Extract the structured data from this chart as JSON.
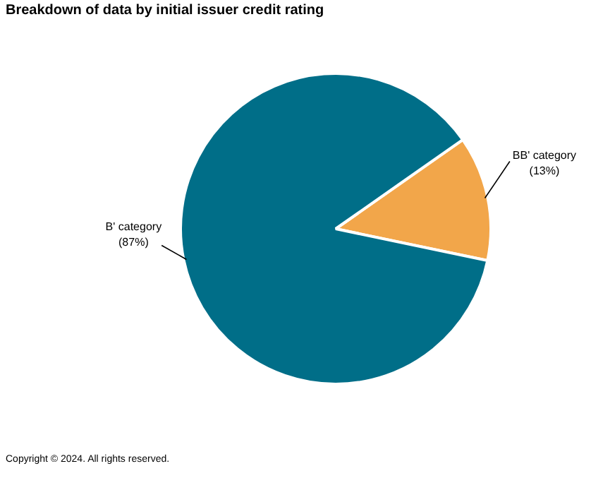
{
  "chart_data": {
    "type": "pie",
    "title": "Breakdown of data by initial issuer credit rating",
    "categories": [
      "BB' category",
      "B' category"
    ],
    "values": [
      13,
      87
    ],
    "value_labels": [
      "(13%)",
      "(87%)"
    ],
    "colors": [
      "#f2a64a",
      "#006e88"
    ],
    "legend": false,
    "annotations": [
      "Copyright © 2024. All rights reserved."
    ]
  }
}
